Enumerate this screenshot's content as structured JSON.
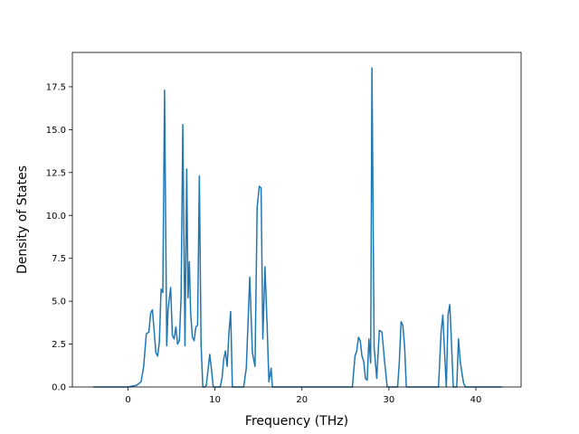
{
  "chart_data": {
    "type": "line",
    "xlabel": "Frequency (THz)",
    "ylabel": "Density of States",
    "xlim": [
      -6.4,
      45.2
    ],
    "ylim": [
      0,
      19.5
    ],
    "x_ticks": [
      0,
      10,
      20,
      30,
      40
    ],
    "x_tick_labels": [
      "0",
      "10",
      "20",
      "30",
      "40"
    ],
    "y_ticks": [
      0,
      2.5,
      5,
      7.5,
      10,
      12.5,
      15,
      17.5
    ],
    "y_tick_labels": [
      "0.0",
      "2.5",
      "5.0",
      "7.5",
      "10.0",
      "12.5",
      "15.0",
      "17.5"
    ],
    "grid": false,
    "colors": {
      "line": "#1f77b4"
    },
    "series": [
      {
        "x": [
          -4,
          -2,
          0,
          1,
          1.5,
          1.8,
          2.1,
          2.4,
          2.6,
          2.8,
          3.0,
          3.2,
          3.4,
          3.6,
          3.8,
          4.0,
          4.2,
          4.45,
          4.6,
          4.9,
          5.1,
          5.3,
          5.5,
          5.7,
          5.9,
          6.1,
          6.3,
          6.55,
          6.75,
          6.9,
          7.05,
          7.2,
          7.4,
          7.6,
          7.8,
          8.0,
          8.2,
          8.4,
          8.6,
          8.85,
          9.0,
          9.2,
          9.4,
          9.6,
          9.8,
          10.0,
          10.2,
          10.4,
          10.6,
          10.8,
          11.0,
          11.2,
          11.4,
          11.6,
          11.8,
          12.0,
          12.3,
          12.55,
          12.75,
          13.0,
          13.3,
          13.6,
          14.0,
          14.3,
          14.6,
          14.85,
          15.1,
          15.3,
          15.5,
          15.75,
          16.0,
          16.2,
          16.45,
          16.6,
          16.8,
          17.0,
          17.2,
          17.4,
          17.6,
          17.8,
          18.0,
          20,
          22,
          24,
          25.0,
          25.4,
          25.8,
          26.1,
          26.3,
          26.5,
          26.7,
          26.9,
          27.1,
          27.3,
          27.5,
          27.7,
          27.9,
          28.05,
          28.3,
          28.6,
          28.9,
          29.2,
          29.5,
          29.8,
          30.1,
          30.4,
          30.7,
          31.0,
          31.2,
          31.4,
          31.6,
          31.8,
          32.0,
          32.2,
          32.5,
          33,
          34,
          35.0,
          35.4,
          35.7,
          36.0,
          36.2,
          36.4,
          36.6,
          36.8,
          37.0,
          37.2,
          37.4,
          37.6,
          37.8,
          38.0,
          38.2,
          38.4,
          38.6,
          38.8,
          39.0,
          39.3,
          39.6,
          40,
          41,
          43
        ],
        "y": [
          0,
          0,
          0,
          0.1,
          0.3,
          1.2,
          3.1,
          3.2,
          4.3,
          4.5,
          3.3,
          2.0,
          1.8,
          2.6,
          5.7,
          5.5,
          17.3,
          2.4,
          4.5,
          5.8,
          3.0,
          2.8,
          3.5,
          2.5,
          2.7,
          5.2,
          15.3,
          2.4,
          12.7,
          5.2,
          7.3,
          4.3,
          2.9,
          2.7,
          3.5,
          3.6,
          12.3,
          2.5,
          0,
          0,
          0.1,
          1.0,
          1.9,
          1.0,
          0,
          0,
          0,
          0,
          0,
          0.5,
          1.6,
          2.1,
          1.2,
          3.1,
          4.4,
          0,
          0,
          0,
          0,
          0,
          0,
          1.1,
          6.4,
          2.0,
          1.2,
          10.5,
          11.7,
          11.6,
          2.8,
          7.0,
          3.5,
          0.3,
          1.1,
          0,
          0,
          0,
          0,
          0,
          0,
          0,
          0,
          0,
          0,
          0,
          0,
          0,
          0,
          1.8,
          2.1,
          2.9,
          2.7,
          1.8,
          1.5,
          0.5,
          0.4,
          2.8,
          1.4,
          18.6,
          2.3,
          0.5,
          3.3,
          3.2,
          1.5,
          0,
          0,
          0,
          0,
          0,
          1.5,
          3.8,
          3.6,
          2.4,
          0,
          0,
          0,
          0,
          0,
          0,
          0,
          0,
          3.2,
          4.2,
          2.0,
          0,
          4.2,
          4.8,
          2.5,
          0,
          0,
          0,
          2.8,
          1.5,
          0.8,
          0.2,
          0,
          0,
          0,
          0,
          0,
          0,
          0
        ]
      }
    ]
  }
}
